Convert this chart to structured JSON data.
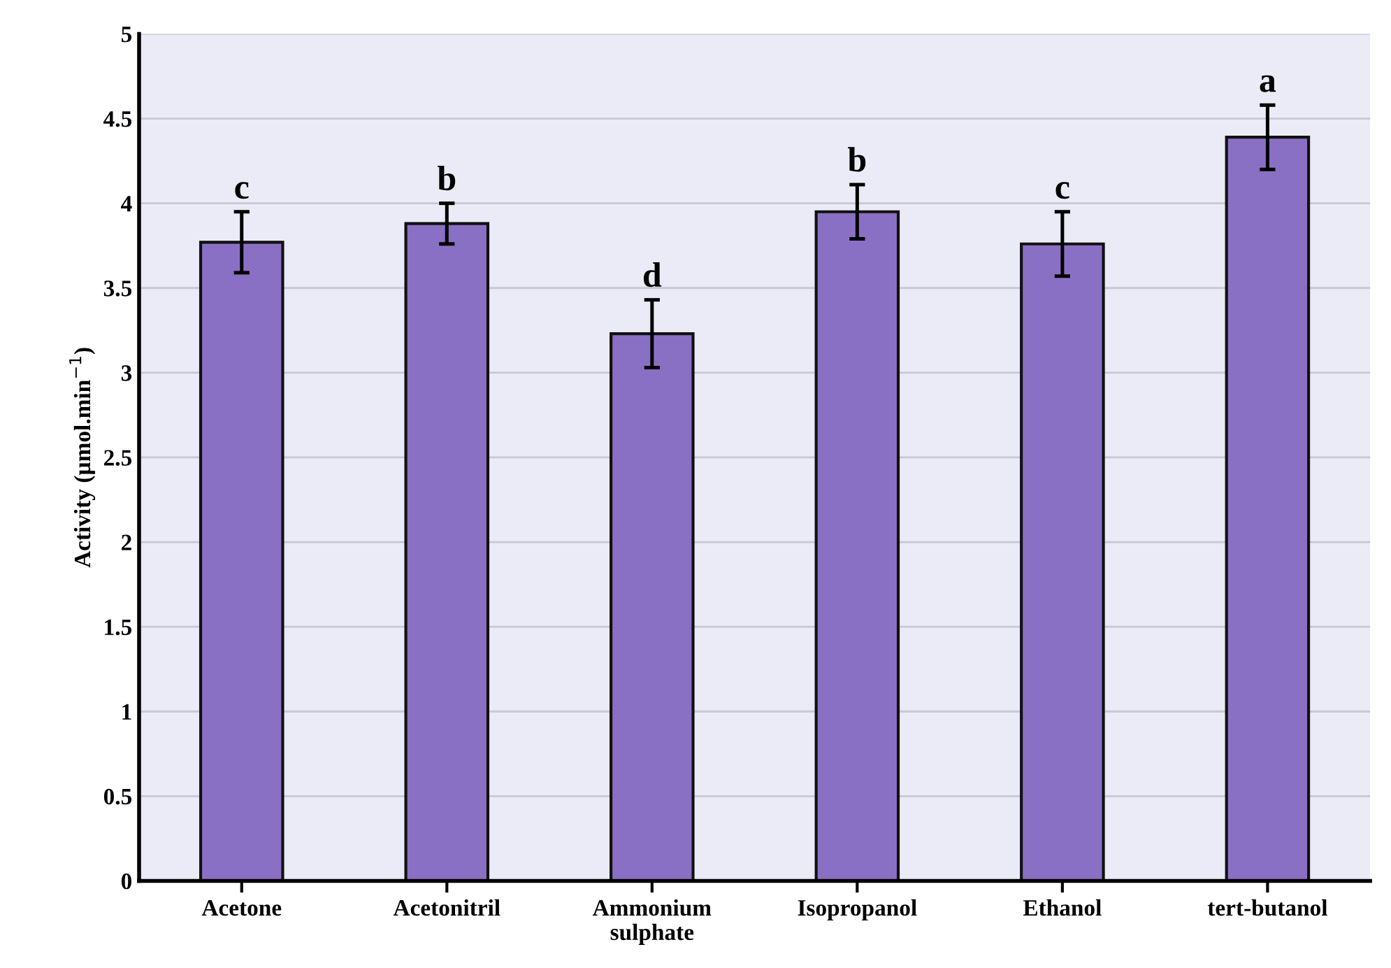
{
  "chart_data": {
    "type": "bar",
    "categories": [
      "Acetone",
      "Acetonitril",
      "Ammonium\nsulphate",
      "Isopropanol",
      "Ethanol",
      "tert-butanol"
    ],
    "values": [
      3.77,
      3.88,
      3.23,
      3.95,
      3.76,
      4.39
    ],
    "errors": [
      0.18,
      0.12,
      0.2,
      0.16,
      0.19,
      0.19
    ],
    "color": "#8a70c4",
    "ylabel": "Activity (µmol.min$^{−1}$)",
    "ylim": [
      0,
      5
    ],
    "yticks": [
      0,
      0.5,
      1,
      1.5,
      2,
      2.5,
      3,
      3.5,
      4,
      4.5,
      5
    ],
    "grid": "y",
    "annotations": [
      {
        "text": "c",
        "x": "Acetone",
        "y": 3.95
      },
      {
        "text": "b",
        "x": "Acetonitril",
        "y": 4.0
      },
      {
        "text": "d",
        "x": "Ammonium\nsulphate",
        "y": 3.43
      },
      {
        "text": "b",
        "x": "Isopropanol",
        "y": 4.11
      },
      {
        "text": "c",
        "x": "Ethanol",
        "y": 3.95
      },
      {
        "text": "a",
        "x": "tert-butanol",
        "y": 4.58
      }
    ]
  }
}
